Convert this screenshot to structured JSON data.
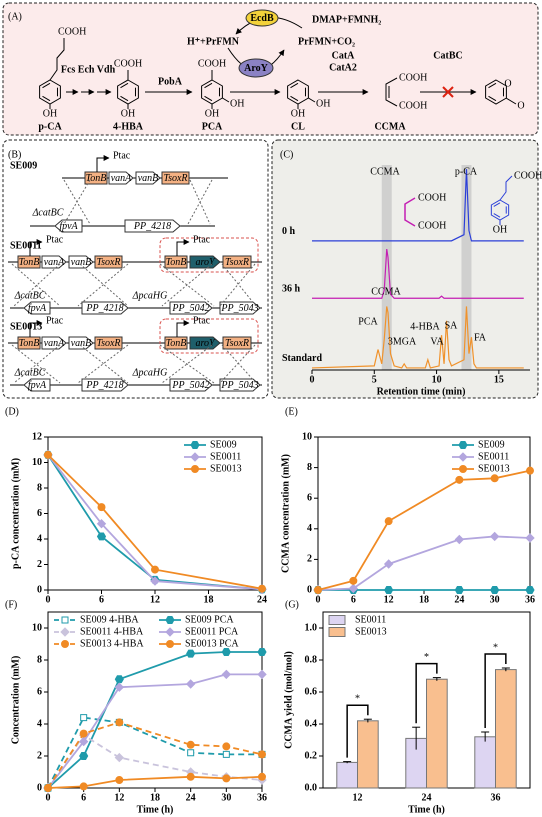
{
  "panel_a": {
    "label": "(A)",
    "compounds": [
      "p-CA",
      "4-HBA",
      "PCA",
      "CL",
      "CCMA"
    ],
    "groups": {
      "cooh": "COOH",
      "oh": "OH",
      "o": "O"
    },
    "enzymes": {
      "fcs": "Fcs Ech Vdh",
      "poba": "PobA",
      "h_prfmn": "H⁺+PrFMN",
      "ecdb": "EcdB",
      "dmap": "DMAP+FMNH₂",
      "prfmn_co2": "PrFMN+CO₂",
      "aroy": "AroY",
      "cata": "CatA",
      "cata2": "CatA2",
      "catbc": "CatBC"
    }
  },
  "panel_b": {
    "label": "(B)",
    "strains": [
      "SE009",
      "SE0011",
      "SE0013"
    ],
    "promoter": "Ptac",
    "genes": {
      "tonB": "TonB",
      "vanA": "vanA",
      "vanB": "vanB",
      "tsoxR": "TsoxR",
      "aroY": "aroY"
    },
    "loci": [
      "ΔcatBC",
      "fpvA",
      "PP_4218",
      "ΔpcaHG",
      "PP_5042",
      "PP_5043"
    ]
  },
  "chart_data": [
    {
      "type": "line",
      "label": "(C)",
      "x": [
        0,
        5.0,
        5.3,
        5.6,
        5.8,
        6.0,
        6.1,
        6.3,
        6.6,
        7.2,
        7.4,
        7.6,
        9.1,
        9.3,
        9.5,
        10.2,
        10.4,
        10.6,
        10.8,
        11.0,
        11.2,
        12.2,
        12.4,
        12.6,
        12.8,
        13.0,
        13.2,
        17
      ],
      "series": [
        {
          "name": "0 h",
          "color": "#2b3fd8",
          "values": [
            6.3,
            6.3,
            6.3,
            6.3,
            6.3,
            6.3,
            6.3,
            6.3,
            6.3,
            6.3,
            6.3,
            6.3,
            6.3,
            6.3,
            6.3,
            6.3,
            6.3,
            6.3,
            6.3,
            6.3,
            6.3,
            6.6,
            9.8,
            6.8,
            6.3,
            6.3,
            6.3,
            6.3
          ]
        },
        {
          "name": "36 h",
          "color": "#c41fb3",
          "values": [
            3.5,
            3.5,
            3.5,
            3.5,
            3.9,
            5.9,
            5.5,
            3.7,
            3.5,
            3.5,
            3.5,
            3.5,
            3.5,
            3.5,
            3.5,
            3.5,
            3.6,
            3.5,
            3.5,
            3.5,
            3.5,
            3.5,
            3.5,
            3.5,
            3.5,
            3.5,
            3.5,
            3.5
          ]
        },
        {
          "name": "Standard",
          "color": "#f0922b",
          "values": [
            0.1,
            0.2,
            1.0,
            0.3,
            1.5,
            3.1,
            2.8,
            0.8,
            0.2,
            0.1,
            0.3,
            0.1,
            0.1,
            0.5,
            0.1,
            0.2,
            1.7,
            0.3,
            2.4,
            0.5,
            0.2,
            0.5,
            3.1,
            0.8,
            1.6,
            0.3,
            0.1,
            0.1
          ]
        }
      ],
      "xlim": [
        0,
        17.5
      ],
      "xticks": [
        0,
        5,
        10,
        15
      ],
      "ylim": [
        0,
        10
      ],
      "xlabel": "Retention time (min)",
      "bands": [
        6.0,
        12.4
      ],
      "annotations": [
        "CCMA",
        "p-CA",
        "PCA",
        "CCMA",
        "3MGA",
        "4-HBA",
        "VA",
        "SA",
        "FA"
      ],
      "structure_groups": [
        "COOH",
        "OH"
      ]
    },
    {
      "type": "line",
      "label": "(D)",
      "x": [
        0,
        6,
        12,
        24
      ],
      "series": [
        {
          "name": "SE009",
          "color": "#1f9bab",
          "marker": "hexagon",
          "values": [
            10.6,
            4.2,
            0.8,
            0.05
          ]
        },
        {
          "name": "SE0011",
          "color": "#b3a6de",
          "marker": "diamond",
          "values": [
            10.6,
            5.2,
            0.7,
            0.05
          ]
        },
        {
          "name": "SE0013",
          "color": "#f08a24",
          "marker": "circle",
          "values": [
            10.6,
            6.5,
            1.6,
            0.1
          ]
        }
      ],
      "xlim": [
        0,
        24
      ],
      "xticks": [
        0,
        6,
        12,
        18,
        24
      ],
      "ylim": [
        0,
        12
      ],
      "yticks": [
        0,
        2,
        4,
        6,
        8,
        10,
        12
      ],
      "ylabel": "p-CA concentration (mM)",
      "legend": "upper right"
    },
    {
      "type": "line",
      "label": "(E)",
      "x": [
        0,
        6,
        12,
        24,
        30,
        36
      ],
      "series": [
        {
          "name": "SE009",
          "color": "#1f9bab",
          "marker": "hexagon",
          "values": [
            0,
            0,
            0,
            0,
            0,
            0
          ]
        },
        {
          "name": "SE0011",
          "color": "#b3a6de",
          "marker": "diamond",
          "values": [
            0,
            0.1,
            1.7,
            3.3,
            3.5,
            3.4
          ]
        },
        {
          "name": "SE0013",
          "color": "#f08a24",
          "marker": "circle",
          "values": [
            0,
            0.6,
            4.5,
            7.2,
            7.3,
            7.8
          ]
        }
      ],
      "xlim": [
        0,
        36
      ],
      "xticks": [
        0,
        6,
        12,
        18,
        24,
        30,
        36
      ],
      "ylim": [
        0,
        10
      ],
      "yticks": [
        0,
        2,
        4,
        6,
        8,
        10
      ],
      "ylabel": "CCMA concentration (mM)",
      "legend": "upper right"
    },
    {
      "type": "line",
      "label": "(F)",
      "x": [
        0,
        6,
        12,
        24,
        30,
        36
      ],
      "series": [
        {
          "name": "SE009 4-HBA",
          "color": "#1f9bab",
          "marker": "square",
          "dash": true,
          "open": true,
          "values": [
            0,
            4.4,
            4.1,
            2.2,
            2.1,
            2.1
          ]
        },
        {
          "name": "SE009 PCA",
          "color": "#1f9bab",
          "marker": "hexagon",
          "values": [
            0,
            2.0,
            6.8,
            8.4,
            8.5,
            8.5
          ]
        },
        {
          "name": "SE0011 4-HBA",
          "color": "#c9c3dc",
          "marker": "diamond",
          "dash": true,
          "values": [
            0,
            3.3,
            1.9,
            1.0,
            0.7,
            0.5
          ]
        },
        {
          "name": "SE0011 PCA",
          "color": "#b3a6de",
          "marker": "diamond",
          "values": [
            0,
            2.9,
            6.3,
            6.5,
            7.1,
            7.1
          ]
        },
        {
          "name": "SE0013 4-HBA",
          "color": "#f08a24",
          "marker": "circle",
          "dash": true,
          "values": [
            0,
            3.4,
            4.1,
            2.7,
            2.6,
            2.1
          ]
        },
        {
          "name": "SE0013 PCA",
          "color": "#f08a24",
          "marker": "circle",
          "values": [
            0,
            0.1,
            0.5,
            0.7,
            0.6,
            0.7
          ]
        }
      ],
      "xlim": [
        0,
        36
      ],
      "xticks": [
        0,
        6,
        12,
        18,
        24,
        30,
        36
      ],
      "ylim": [
        0,
        11
      ],
      "yticks": [
        0,
        2,
        4,
        6,
        8,
        10
      ],
      "xlabel": "Time (h)",
      "ylabel": "Concentration (mM)",
      "legend": "upper left",
      "legend_columns": 2
    },
    {
      "type": "bar",
      "label": "(G)",
      "categories": [
        "12",
        "24",
        "36"
      ],
      "series": [
        {
          "name": "SE0011",
          "color": "#ddd5f2",
          "values": [
            0.16,
            0.31,
            0.32
          ],
          "errors": [
            0.005,
            0.07,
            0.03
          ]
        },
        {
          "name": "SE0013",
          "color": "#f9bf8f",
          "values": [
            0.42,
            0.68,
            0.74
          ],
          "errors": [
            0.01,
            0.01,
            0.01
          ]
        }
      ],
      "ylim": [
        0,
        1.1
      ],
      "yticks": [
        {
          "value": 0,
          "label": "0.0"
        },
        0.2,
        0.4,
        0.6,
        0.8,
        {
          "value": 1,
          "label": "1.0"
        }
      ],
      "xlabel": "Time (h)",
      "ylabel": "CCMA yield (mol/mol)",
      "annotations": [
        "*",
        "*",
        "*"
      ],
      "legend": "upper left"
    }
  ]
}
